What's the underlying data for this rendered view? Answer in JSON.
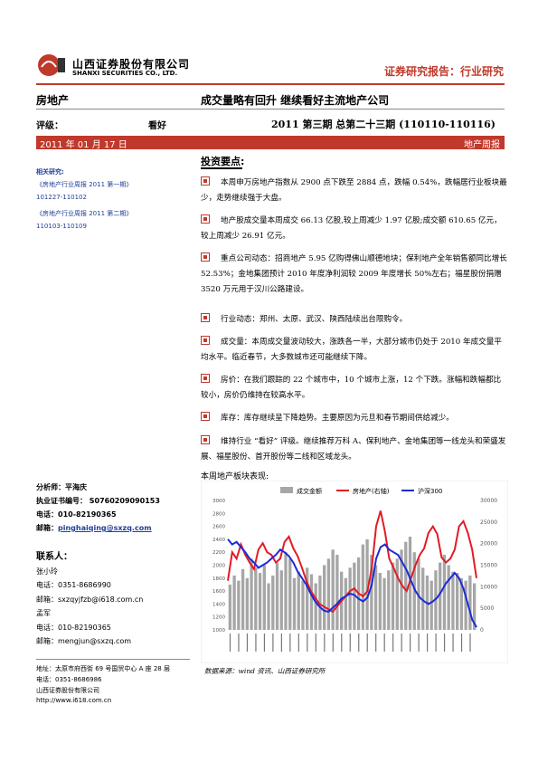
{
  "header": {
    "company_cn": "山西证券股份有限公司",
    "company_en": "SHANXI SECURITIES CO., LTD.",
    "report_type": "证券研究报告：行业研究"
  },
  "meta": {
    "sector": "房地产",
    "headline": "成交量略有回升    继续看好主流地产公司",
    "rating_label": "评级：",
    "rating_value": "看好",
    "issue": "2011 第三期 总第二十三期  (110110-110116)",
    "date": "2011 年 01 月 17 日",
    "report_kind": "地产周报"
  },
  "related": {
    "title": "相关研究:",
    "items": [
      "《房地产行业周报 2011 第一期》",
      "101227-110102",
      "《房地产行业周报 2011 第二期》",
      "110103-110109"
    ]
  },
  "main": {
    "section_title": "投资要点:",
    "bullets": [
      "本周申万房地产指数从 2900 点下跌至 2884 点，跌幅 0.54%，跌幅居行业板块最少，走势继续强于大盘。",
      "地产股成交量本周成交 66.13 亿股,较上周减少 1.97 亿股;成交额 610.65 亿元，较上周减少 26.91 亿元。",
      "重点公司动态：招商地产 5.95 亿购得佛山顺德地块；保利地产全年销售额同比增长 52.53%；金地集团预计 2010 年度净利润较 2009 年度增长 50%左右；福星股份捐赠 3520 万元用于汉川公路建设。",
      "行业动态：郑州、太原、武汉、陕西陆续出台限购令。",
      "成交量：本周成交量波动较大，涨跌各一半，大部分城市仍处于 2010 年成交量平均水平。临近春节，大多数城市还可能继续下降。",
      "房价：在我们跟踪的 22 个城市中，10 个城市上涨，12 个下跌。涨幅和跌幅都比较小，房价仍维持在较高水平。",
      "库存：库存继续呈下降趋势。主要原因为元旦和春节期间供给减少。",
      "维持行业 “看好” 评级。继续推荐万科 A、保利地产、金地集团等一线龙头和荣盛发展、福星股份、首开股份等二线和区域龙头。"
    ],
    "chart_caption": "本周地产板块表现:",
    "chart_source": "数据来源：wind 资讯、山西证券研究所"
  },
  "analyst": {
    "name_label": "分析师：平海庆",
    "cert": "执业证书编号： S0760209090153",
    "phone": "电话：010-82190365",
    "email_label": "邮箱：",
    "email": "pinghaiqing@sxzq.com"
  },
  "contacts": {
    "title": "联系人：",
    "people": [
      {
        "name": "张小玲",
        "phone": "电话：0351-8686990",
        "email": "邮箱：sxzqyjfzb@i618.com.cn"
      },
      {
        "name": "孟军",
        "phone": "电话：010-82190365",
        "email": "邮箱：mengjun@sxzq.com"
      }
    ]
  },
  "footer": {
    "address": "地址：太原市府西街 69 号国贸中心 A 座 28 层",
    "phone": "电话：0351-8686986",
    "company": "山西证券股份有限公司",
    "url": "http://www.i618.com.cn"
  },
  "colors": {
    "brand_red": "#c0392b",
    "link_blue": "#1f3f99",
    "bar_gray": "#a6a6a6",
    "line_red": "#e31b23",
    "line_blue": "#1c2bd6"
  },
  "chart_data": {
    "type": "bar",
    "legend": [
      "成交金额",
      "房地产(右轴)",
      "沪深300"
    ],
    "y_left_ticks": [
      "3000",
      "2800",
      "2600",
      "2400",
      "2200",
      "2000",
      "1800",
      "1600",
      "1400",
      "1200",
      "1000"
    ],
    "y_right_ticks": [
      "30000",
      "25000",
      "20000",
      "15000",
      "10000",
      "5000",
      "0"
    ],
    "y_right_range": [
      0,
      30000
    ],
    "volume": [
      0.35,
      0.42,
      0.38,
      0.47,
      0.4,
      0.55,
      0.48,
      0.44,
      0.5,
      0.36,
      0.42,
      0.52,
      0.46,
      0.6,
      0.55,
      0.4,
      0.45,
      0.38,
      0.48,
      0.43,
      0.36,
      0.42,
      0.5,
      0.55,
      0.62,
      0.58,
      0.45,
      0.4,
      0.48,
      0.52,
      0.56,
      0.66,
      0.7,
      0.58,
      0.5,
      0.44,
      0.4,
      0.46,
      0.52,
      0.55,
      0.62,
      0.68,
      0.72,
      0.6,
      0.55,
      0.48,
      0.42,
      0.38,
      0.46,
      0.52,
      0.58,
      0.5,
      0.45,
      0.44,
      0.4,
      0.38,
      0.42,
      0.36
    ],
    "realestate": [
      0.38,
      0.6,
      0.55,
      0.66,
      0.58,
      0.52,
      0.47,
      0.62,
      0.67,
      0.6,
      0.58,
      0.52,
      0.55,
      0.68,
      0.72,
      0.63,
      0.57,
      0.48,
      0.38,
      0.3,
      0.25,
      0.2,
      0.18,
      0.16,
      0.14,
      0.18,
      0.22,
      0.26,
      0.3,
      0.32,
      0.28,
      0.26,
      0.3,
      0.48,
      0.8,
      0.92,
      0.76,
      0.55,
      0.48,
      0.4,
      0.34,
      0.3,
      0.4,
      0.5,
      0.58,
      0.63,
      0.75,
      0.8,
      0.74,
      0.56,
      0.52,
      0.55,
      0.62,
      0.8,
      0.84,
      0.75,
      0.62,
      0.4
    ],
    "hs300": [
      0.7,
      0.66,
      0.68,
      0.64,
      0.6,
      0.55,
      0.52,
      0.48,
      0.5,
      0.52,
      0.55,
      0.58,
      0.62,
      0.6,
      0.57,
      0.52,
      0.45,
      0.4,
      0.35,
      0.28,
      0.22,
      0.18,
      0.15,
      0.14,
      0.17,
      0.2,
      0.24,
      0.26,
      0.28,
      0.27,
      0.24,
      0.22,
      0.25,
      0.35,
      0.55,
      0.64,
      0.66,
      0.62,
      0.6,
      0.58,
      0.52,
      0.46,
      0.38,
      0.3,
      0.25,
      0.22,
      0.2,
      0.22,
      0.25,
      0.3,
      0.36,
      0.4,
      0.44,
      0.4,
      0.32,
      0.2,
      0.08,
      0.02
    ]
  }
}
